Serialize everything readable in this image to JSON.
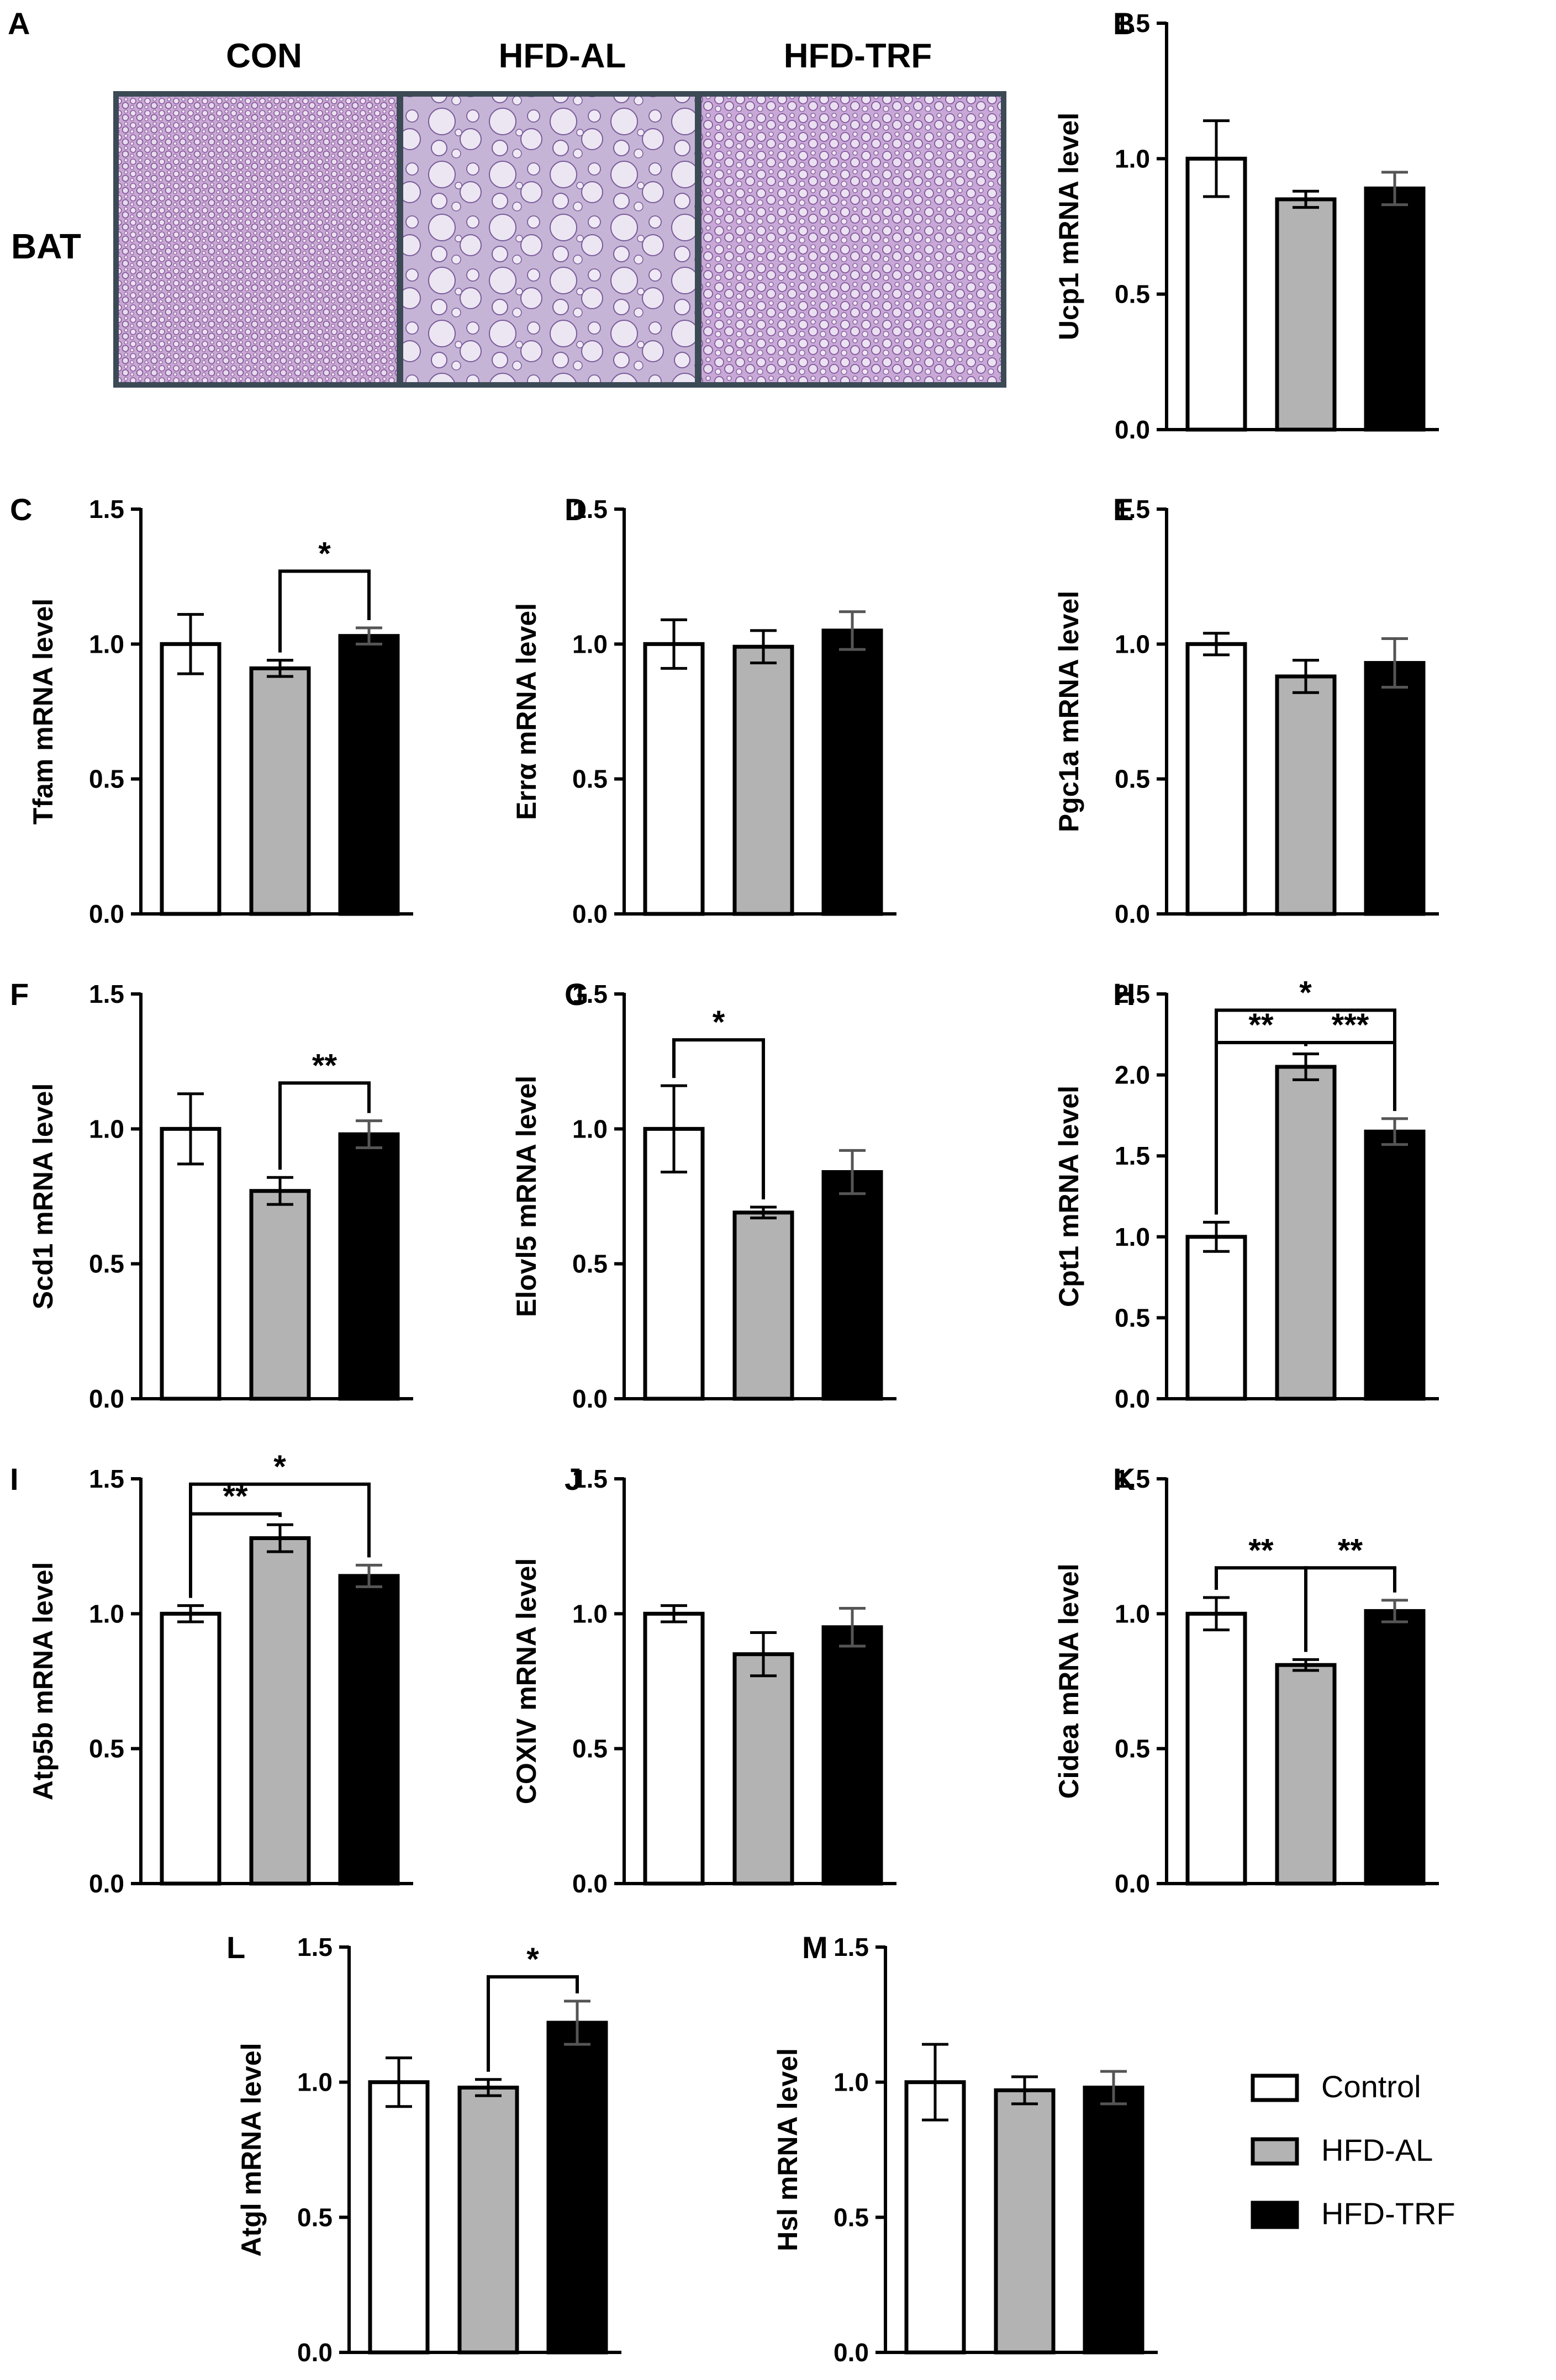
{
  "panel_a": {
    "letter": "A",
    "tissue": "BAT",
    "groups": [
      "CON",
      "HFD-AL",
      "HFD-TRF"
    ]
  },
  "legend": {
    "items": [
      {
        "label": "Control",
        "color": "#ffffff"
      },
      {
        "label": "HFD-AL",
        "color": "#b3b3b3"
      },
      {
        "label": "HFD-TRF",
        "color": "#000000"
      }
    ]
  },
  "colors": {
    "control": "#ffffff",
    "hfd_al": "#b3b3b3",
    "hfd_trf": "#000000",
    "axis": "#000000"
  },
  "chart_data": [
    {
      "letter": "B",
      "type": "bar",
      "ylabel": "Ucp1 mRNA level",
      "ylim": [
        0,
        1.5
      ],
      "ticks": [
        "0.0",
        "0.5",
        "1.0",
        "1.5"
      ],
      "categories": [
        "Control",
        "HFD-AL",
        "HFD-TRF"
      ],
      "values": [
        1.0,
        0.85,
        0.89
      ],
      "errors": [
        0.14,
        0.03,
        0.06
      ],
      "significance": []
    },
    {
      "letter": "C",
      "type": "bar",
      "ylabel": "Tfam mRNA level",
      "ylim": [
        0,
        1.5
      ],
      "ticks": [
        "0.0",
        "0.5",
        "1.0",
        "1.5"
      ],
      "categories": [
        "Control",
        "HFD-AL",
        "HFD-TRF"
      ],
      "values": [
        1.0,
        0.91,
        1.03
      ],
      "errors": [
        0.11,
        0.03,
        0.03
      ],
      "significance": [
        {
          "from": 1,
          "to": 2,
          "label": "*",
          "y": 1.27
        }
      ]
    },
    {
      "letter": "D",
      "type": "bar",
      "ylabel": "Errα mRNA level",
      "ylim": [
        0,
        1.5
      ],
      "ticks": [
        "0.0",
        "0.5",
        "1.0",
        "1.5"
      ],
      "categories": [
        "Control",
        "HFD-AL",
        "HFD-TRF"
      ],
      "values": [
        1.0,
        0.99,
        1.05
      ],
      "errors": [
        0.09,
        0.06,
        0.07
      ],
      "significance": []
    },
    {
      "letter": "E",
      "type": "bar",
      "ylabel": "Pgc1a mRNA level",
      "ylim": [
        0,
        1.5
      ],
      "ticks": [
        "0.0",
        "0.5",
        "1.0",
        "1.5"
      ],
      "categories": [
        "Control",
        "HFD-AL",
        "HFD-TRF"
      ],
      "values": [
        1.0,
        0.88,
        0.93
      ],
      "errors": [
        0.04,
        0.06,
        0.09
      ],
      "significance": []
    },
    {
      "letter": "F",
      "type": "bar",
      "ylabel": "Scd1 mRNA level",
      "ylim": [
        0,
        1.5
      ],
      "ticks": [
        "0.0",
        "0.5",
        "1.0",
        "1.5"
      ],
      "categories": [
        "Control",
        "HFD-AL",
        "HFD-TRF"
      ],
      "values": [
        1.0,
        0.77,
        0.98
      ],
      "errors": [
        0.13,
        0.05,
        0.05
      ],
      "significance": [
        {
          "from": 1,
          "to": 2,
          "label": "**",
          "y": 1.17
        }
      ]
    },
    {
      "letter": "G",
      "type": "bar",
      "ylabel": "Elovl5 mRNA level",
      "ylim": [
        0,
        1.5
      ],
      "ticks": [
        "0.0",
        "0.5",
        "1.0",
        "1.5"
      ],
      "categories": [
        "Control",
        "HFD-AL",
        "HFD-TRF"
      ],
      "values": [
        1.0,
        0.69,
        0.84
      ],
      "errors": [
        0.16,
        0.02,
        0.08
      ],
      "significance": [
        {
          "from": 0,
          "to": 1,
          "label": "*",
          "y": 1.33
        }
      ]
    },
    {
      "letter": "H",
      "type": "bar",
      "ylabel": "Cpt1 mRNA level",
      "ylim": [
        0,
        2.5
      ],
      "ticks": [
        "0.0",
        "0.5",
        "1.0",
        "1.5",
        "2.0",
        "2.5"
      ],
      "categories": [
        "Control",
        "HFD-AL",
        "HFD-TRF"
      ],
      "values": [
        1.0,
        2.05,
        1.65
      ],
      "errors": [
        0.09,
        0.08,
        0.08
      ],
      "significance": [
        {
          "from": 0,
          "to": 1,
          "label": "**",
          "y": 2.2
        },
        {
          "from": 1,
          "to": 2,
          "label": "***",
          "y": 2.2
        },
        {
          "from": 0,
          "to": 2,
          "label": "*",
          "y": 2.4
        }
      ]
    },
    {
      "letter": "I",
      "type": "bar",
      "ylabel": "Atp5b mRNA level",
      "ylim": [
        0,
        1.5
      ],
      "ticks": [
        "0.0",
        "0.5",
        "1.0",
        "1.5"
      ],
      "categories": [
        "Control",
        "HFD-AL",
        "HFD-TRF"
      ],
      "values": [
        1.0,
        1.28,
        1.14
      ],
      "errors": [
        0.03,
        0.05,
        0.04
      ],
      "significance": [
        {
          "from": 0,
          "to": 1,
          "label": "**",
          "y": 1.37
        },
        {
          "from": 0,
          "to": 2,
          "label": "*",
          "y": 1.48
        }
      ]
    },
    {
      "letter": "J",
      "type": "bar",
      "ylabel": "COXIV mRNA level",
      "ylim": [
        0,
        1.5
      ],
      "ticks": [
        "0.0",
        "0.5",
        "1.0",
        "1.5"
      ],
      "categories": [
        "Control",
        "HFD-AL",
        "HFD-TRF"
      ],
      "values": [
        1.0,
        0.85,
        0.95
      ],
      "errors": [
        0.03,
        0.08,
        0.07
      ],
      "significance": []
    },
    {
      "letter": "K",
      "type": "bar",
      "ylabel": "Cidea mRNA level",
      "ylim": [
        0,
        1.5
      ],
      "ticks": [
        "0.0",
        "0.5",
        "1.0",
        "1.5"
      ],
      "categories": [
        "Control",
        "HFD-AL",
        "HFD-TRF"
      ],
      "values": [
        1.0,
        0.81,
        1.01
      ],
      "errors": [
        0.06,
        0.02,
        0.04
      ],
      "significance": [
        {
          "from": 0,
          "to": 1,
          "label": "**",
          "y": 1.17
        },
        {
          "from": 1,
          "to": 2,
          "label": "**",
          "y": 1.17
        }
      ]
    },
    {
      "letter": "L",
      "type": "bar",
      "ylabel": "Atgl mRNA level",
      "ylim": [
        0,
        1.5
      ],
      "ticks": [
        "0.0",
        "0.5",
        "1.0",
        "1.5"
      ],
      "categories": [
        "Control",
        "HFD-AL",
        "HFD-TRF"
      ],
      "values": [
        1.0,
        0.98,
        1.22
      ],
      "errors": [
        0.09,
        0.03,
        0.08
      ],
      "significance": [
        {
          "from": 1,
          "to": 2,
          "label": "*",
          "y": 1.39
        }
      ]
    },
    {
      "letter": "M",
      "type": "bar",
      "ylabel": "Hsl mRNA level",
      "ylim": [
        0,
        1.5
      ],
      "ticks": [
        "0.0",
        "0.5",
        "1.0",
        "1.5"
      ],
      "categories": [
        "Control",
        "HFD-AL",
        "HFD-TRF"
      ],
      "values": [
        1.0,
        0.97,
        0.98
      ],
      "errors": [
        0.14,
        0.05,
        0.06
      ],
      "significance": []
    }
  ]
}
